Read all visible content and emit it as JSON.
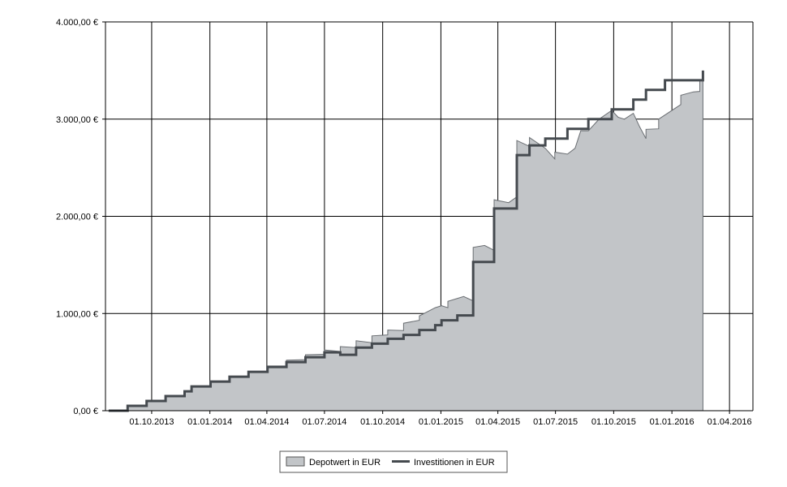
{
  "chart_data": {
    "type": "area",
    "title": "",
    "xlabel": "",
    "ylabel": "",
    "x_ticks": [
      "01.10.2013",
      "01.01.2014",
      "01.04.2014",
      "01.07.2014",
      "01.10.2014",
      "01.01.2015",
      "01.04.2015",
      "01.07.2015",
      "01.10.2015",
      "01.01.2016",
      "01.04.2016"
    ],
    "y_ticks": [
      "0,00 €",
      "1.000,00 €",
      "2.000,00 €",
      "3.000,00 €",
      "4.000,00 €"
    ],
    "x_range": [
      "2013-07-20",
      "2016-05-08"
    ],
    "ylim": [
      0,
      4000
    ],
    "grid": true,
    "legend": "bottom-center",
    "series": [
      {
        "name": "Depotwert in EUR",
        "style": "area",
        "color": "#c2c5c8",
        "stroke": "#6a6e72",
        "points": [
          [
            "2013-07-25",
            0
          ],
          [
            "2013-08-24",
            0
          ],
          [
            "2013-08-24",
            50
          ],
          [
            "2013-09-23",
            50
          ],
          [
            "2013-09-23",
            100
          ],
          [
            "2013-10-23",
            100
          ],
          [
            "2013-10-23",
            150
          ],
          [
            "2013-11-22",
            150
          ],
          [
            "2013-11-22",
            200
          ],
          [
            "2013-12-03",
            200
          ],
          [
            "2013-12-03",
            250
          ],
          [
            "2014-01-02",
            250
          ],
          [
            "2014-01-02",
            300
          ],
          [
            "2014-02-01",
            300
          ],
          [
            "2014-02-01",
            350
          ],
          [
            "2014-03-03",
            350
          ],
          [
            "2014-03-03",
            400
          ],
          [
            "2014-04-02",
            400
          ],
          [
            "2014-04-02",
            460
          ],
          [
            "2014-05-02",
            460
          ],
          [
            "2014-05-02",
            520
          ],
          [
            "2014-06-01",
            525
          ],
          [
            "2014-06-01",
            575
          ],
          [
            "2014-07-01",
            580
          ],
          [
            "2014-07-01",
            625
          ],
          [
            "2014-07-26",
            610
          ],
          [
            "2014-07-26",
            660
          ],
          [
            "2014-08-20",
            650
          ],
          [
            "2014-08-20",
            720
          ],
          [
            "2014-09-14",
            700
          ],
          [
            "2014-09-14",
            770
          ],
          [
            "2014-10-09",
            780
          ],
          [
            "2014-10-09",
            830
          ],
          [
            "2014-11-03",
            825
          ],
          [
            "2014-11-03",
            900
          ],
          [
            "2014-11-28",
            930
          ],
          [
            "2014-11-28",
            975
          ],
          [
            "2014-12-23",
            1060
          ],
          [
            "2015-01-02",
            1080
          ],
          [
            "2015-01-12",
            1060
          ],
          [
            "2015-01-12",
            1125
          ],
          [
            "2015-02-06",
            1175
          ],
          [
            "2015-02-21",
            1130
          ],
          [
            "2015-02-21",
            1680
          ],
          [
            "2015-03-11",
            1700
          ],
          [
            "2015-03-26",
            1650
          ],
          [
            "2015-03-26",
            2170
          ],
          [
            "2015-04-18",
            2140
          ],
          [
            "2015-05-01",
            2200
          ],
          [
            "2015-05-01",
            2780
          ],
          [
            "2015-05-21",
            2720
          ],
          [
            "2015-05-21",
            2810
          ],
          [
            "2015-06-15",
            2700
          ],
          [
            "2015-06-30",
            2590
          ],
          [
            "2015-06-30",
            2660
          ],
          [
            "2015-07-20",
            2640
          ],
          [
            "2015-08-01",
            2700
          ],
          [
            "2015-08-10",
            2880
          ],
          [
            "2015-08-22",
            2880
          ],
          [
            "2015-09-08",
            3000
          ],
          [
            "2015-09-28",
            3090
          ],
          [
            "2015-10-08",
            3020
          ],
          [
            "2015-10-18",
            3000
          ],
          [
            "2015-11-01",
            3060
          ],
          [
            "2015-11-11",
            2920
          ],
          [
            "2015-11-21",
            2800
          ],
          [
            "2015-11-21",
            2895
          ],
          [
            "2015-12-11",
            2900
          ],
          [
            "2015-12-11",
            3000
          ],
          [
            "2016-01-15",
            3150
          ],
          [
            "2016-01-15",
            3245
          ],
          [
            "2016-02-04",
            3280
          ],
          [
            "2016-02-14",
            3285
          ],
          [
            "2016-02-14",
            3400
          ],
          [
            "2016-02-19",
            3400
          ]
        ]
      },
      {
        "name": "Investitionen in EUR",
        "style": "line",
        "color": "#454a4f",
        "points": [
          [
            "2013-07-25",
            0
          ],
          [
            "2013-08-24",
            0
          ],
          [
            "2013-08-24",
            50
          ],
          [
            "2013-09-23",
            50
          ],
          [
            "2013-09-23",
            100
          ],
          [
            "2013-10-23",
            100
          ],
          [
            "2013-10-23",
            150
          ],
          [
            "2013-11-22",
            150
          ],
          [
            "2013-11-22",
            200
          ],
          [
            "2013-12-03",
            200
          ],
          [
            "2013-12-03",
            250
          ],
          [
            "2014-01-02",
            250
          ],
          [
            "2014-01-02",
            300
          ],
          [
            "2014-02-01",
            300
          ],
          [
            "2014-02-01",
            350
          ],
          [
            "2014-03-03",
            350
          ],
          [
            "2014-03-03",
            400
          ],
          [
            "2014-04-02",
            400
          ],
          [
            "2014-04-02",
            450
          ],
          [
            "2014-05-02",
            450
          ],
          [
            "2014-05-02",
            500
          ],
          [
            "2014-06-01",
            500
          ],
          [
            "2014-06-01",
            550
          ],
          [
            "2014-07-01",
            550
          ],
          [
            "2014-07-01",
            600
          ],
          [
            "2014-07-26",
            600
          ],
          [
            "2014-07-26",
            575
          ],
          [
            "2014-08-20",
            575
          ],
          [
            "2014-08-20",
            650
          ],
          [
            "2014-09-14",
            650
          ],
          [
            "2014-09-14",
            690
          ],
          [
            "2014-10-09",
            690
          ],
          [
            "2014-10-09",
            740
          ],
          [
            "2014-11-03",
            740
          ],
          [
            "2014-11-03",
            780
          ],
          [
            "2014-11-28",
            780
          ],
          [
            "2014-11-28",
            830
          ],
          [
            "2014-12-23",
            830
          ],
          [
            "2014-12-23",
            880
          ],
          [
            "2015-01-02",
            880
          ],
          [
            "2015-01-02",
            930
          ],
          [
            "2015-01-27",
            930
          ],
          [
            "2015-01-27",
            980
          ],
          [
            "2015-02-21",
            980
          ],
          [
            "2015-02-21",
            1530
          ],
          [
            "2015-03-26",
            1530
          ],
          [
            "2015-03-26",
            2080
          ],
          [
            "2015-05-01",
            2080
          ],
          [
            "2015-05-01",
            2630
          ],
          [
            "2015-05-21",
            2630
          ],
          [
            "2015-05-21",
            2730
          ],
          [
            "2015-06-15",
            2730
          ],
          [
            "2015-06-15",
            2800
          ],
          [
            "2015-07-20",
            2800
          ],
          [
            "2015-07-20",
            2900
          ],
          [
            "2015-08-22",
            2900
          ],
          [
            "2015-08-22",
            3000
          ],
          [
            "2015-09-28",
            3000
          ],
          [
            "2015-09-28",
            3100
          ],
          [
            "2015-11-01",
            3100
          ],
          [
            "2015-11-01",
            3200
          ],
          [
            "2015-11-21",
            3200
          ],
          [
            "2015-11-21",
            3300
          ],
          [
            "2015-12-21",
            3300
          ],
          [
            "2015-12-21",
            3400
          ],
          [
            "2016-02-19",
            3400
          ],
          [
            "2016-02-19",
            3500
          ]
        ]
      }
    ]
  }
}
